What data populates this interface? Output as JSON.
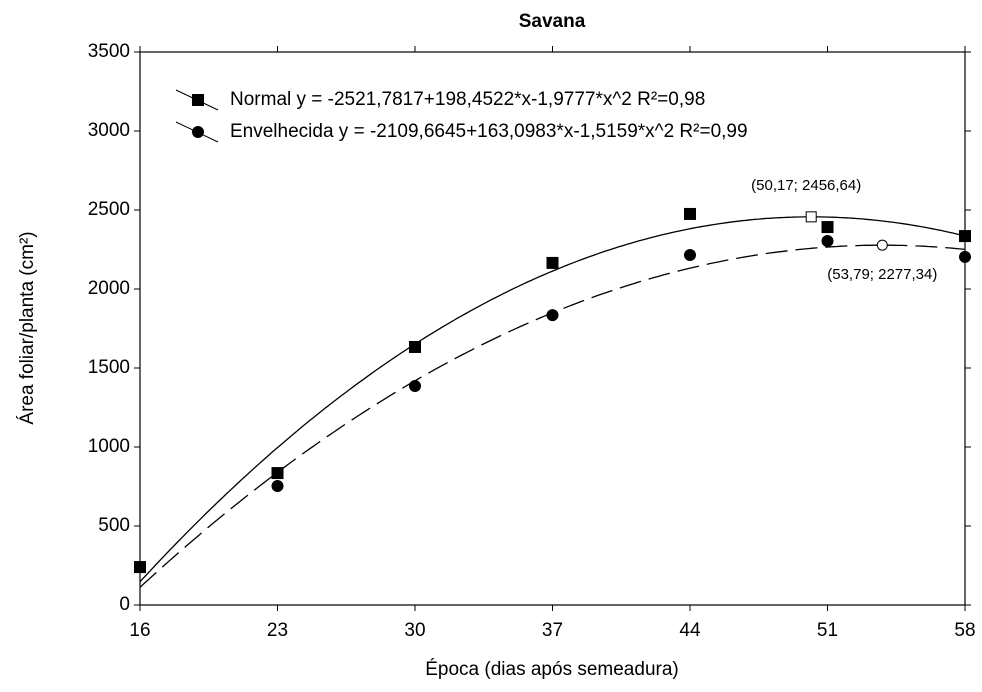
{
  "chart_data": {
    "type": "scatter",
    "title": "Savana",
    "xlabel": "Época (dias após semeadura)",
    "ylabel": "Área foliar/planta (cm²)",
    "xlim": [
      16,
      58
    ],
    "xticks": [
      16,
      23,
      30,
      37,
      44,
      51,
      58
    ],
    "ylim": [
      0,
      3500
    ],
    "yticks": [
      0,
      500,
      1000,
      1500,
      2000,
      2500,
      3000,
      3500
    ],
    "legend": "upper left",
    "series": [
      {
        "name": "Normal y = -2521,7817+198,4522*x-1,9777*x^2 R²=0,98",
        "color": "#000000",
        "marker": "square",
        "dash": "solid",
        "x": [
          16,
          23,
          30,
          37,
          44,
          51,
          58
        ],
        "values": [
          240,
          835,
          1633,
          2165,
          2475,
          2392,
          2335
        ],
        "fit": [
          -2521.7817,
          198.4522,
          -1.9777
        ]
      },
      {
        "name": "Envelhecida y = -2109,6645+163,0983*x-1,5159*x^2 R²=0,99",
        "color": "#000000",
        "marker": "circle",
        "dash": "dashed",
        "x": [
          23,
          30,
          37,
          44,
          51,
          58
        ],
        "values": [
          753,
          1386,
          1835,
          2215,
          2304,
          2203
        ],
        "fit": [
          -2109.6645,
          163.0983,
          -1.5159
        ]
      }
    ],
    "annotations": [
      {
        "x": 50.17,
        "y": 2456.64,
        "label": "(50,17; 2456,64)",
        "marker": "square"
      },
      {
        "x": 53.79,
        "y": 2277.34,
        "label": "(53,79; 2277,34)",
        "marker": "circle"
      }
    ]
  }
}
